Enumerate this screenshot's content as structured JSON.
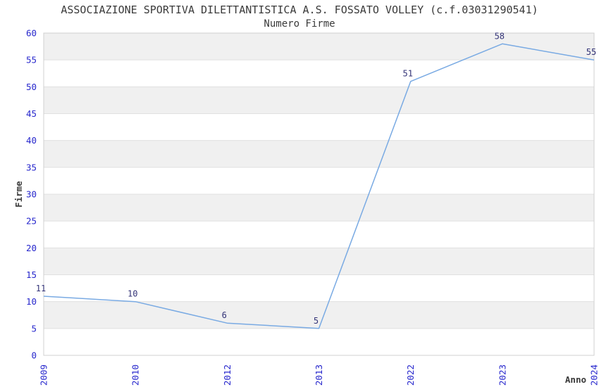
{
  "chart_data": {
    "type": "line",
    "title": "ASSOCIAZIONE SPORTIVA DILETTANTISTICA A.S. FOSSATO VOLLEY (c.f.03031290541)",
    "subtitle": "Numero Firme",
    "xlabel": "Anno",
    "ylabel": "Firme",
    "categories": [
      "2009",
      "2010",
      "2012",
      "2013",
      "2022",
      "2023",
      "2024"
    ],
    "values": [
      11,
      10,
      6,
      5,
      51,
      58,
      55
    ],
    "ylim": [
      0,
      60
    ],
    "ytick_step": 5,
    "grid": true,
    "legend": false,
    "band_pattern": "alternating-gray-from-top",
    "colors": {
      "line": "#79aae3",
      "tick_label": "#2626cc",
      "data_label": "#333377",
      "band": "#f0f0f0",
      "grid": "#e0e0e0",
      "border": "#d0d0d0",
      "text": "#3a3a3a"
    }
  }
}
